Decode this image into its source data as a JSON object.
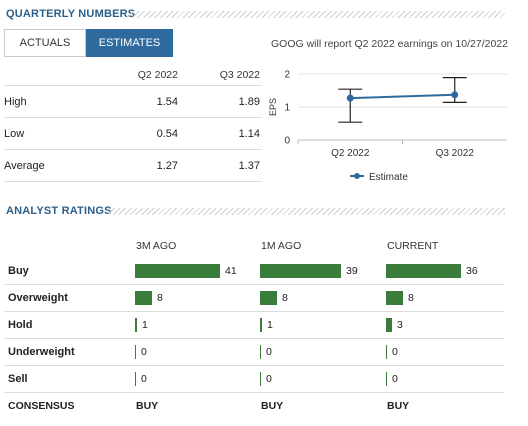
{
  "quarterly": {
    "title": "QUARTERLY NUMBERS",
    "tabs": {
      "actuals": "ACTUALS",
      "estimates": "ESTIMATES"
    },
    "report_note": "GOOG will report Q2 2022 earnings on 10/27/2022",
    "table": {
      "columns": [
        "Q2 2022",
        "Q3 2022"
      ],
      "rows": [
        {
          "label": "High",
          "values": [
            "1.54",
            "1.89"
          ]
        },
        {
          "label": "Low",
          "values": [
            "0.54",
            "1.14"
          ]
        },
        {
          "label": "Average",
          "values": [
            "1.27",
            "1.37"
          ]
        }
      ]
    }
  },
  "chart_data": {
    "type": "line",
    "categories": [
      "Q2 2022",
      "Q3 2022"
    ],
    "series": [
      {
        "name": "Estimate",
        "values": [
          1.27,
          1.37
        ],
        "low": [
          0.54,
          1.14
        ],
        "high": [
          1.54,
          1.89
        ]
      }
    ],
    "ylabel": "EPS",
    "yticks": [
      0,
      1,
      2
    ],
    "ylim": [
      0,
      2
    ],
    "legend": "bottom",
    "colors": {
      "series": "#2f6a9e",
      "errorbar": "#222222"
    }
  },
  "ratings": {
    "title": "ANALYST RATINGS",
    "columns": [
      "3M AGO",
      "1M AGO",
      "CURRENT"
    ],
    "rows": [
      {
        "label": "Buy",
        "values": [
          41,
          39,
          36
        ]
      },
      {
        "label": "Overweight",
        "values": [
          8,
          8,
          8
        ]
      },
      {
        "label": "Hold",
        "values": [
          1,
          1,
          3
        ]
      },
      {
        "label": "Underweight",
        "values": [
          0,
          0,
          0
        ]
      },
      {
        "label": "Sell",
        "values": [
          0,
          0,
          0
        ]
      }
    ],
    "consensus_label": "CONSENSUS",
    "consensus": [
      "BUY",
      "BUY",
      "BUY"
    ],
    "bar_color": "#3a7d3a"
  }
}
